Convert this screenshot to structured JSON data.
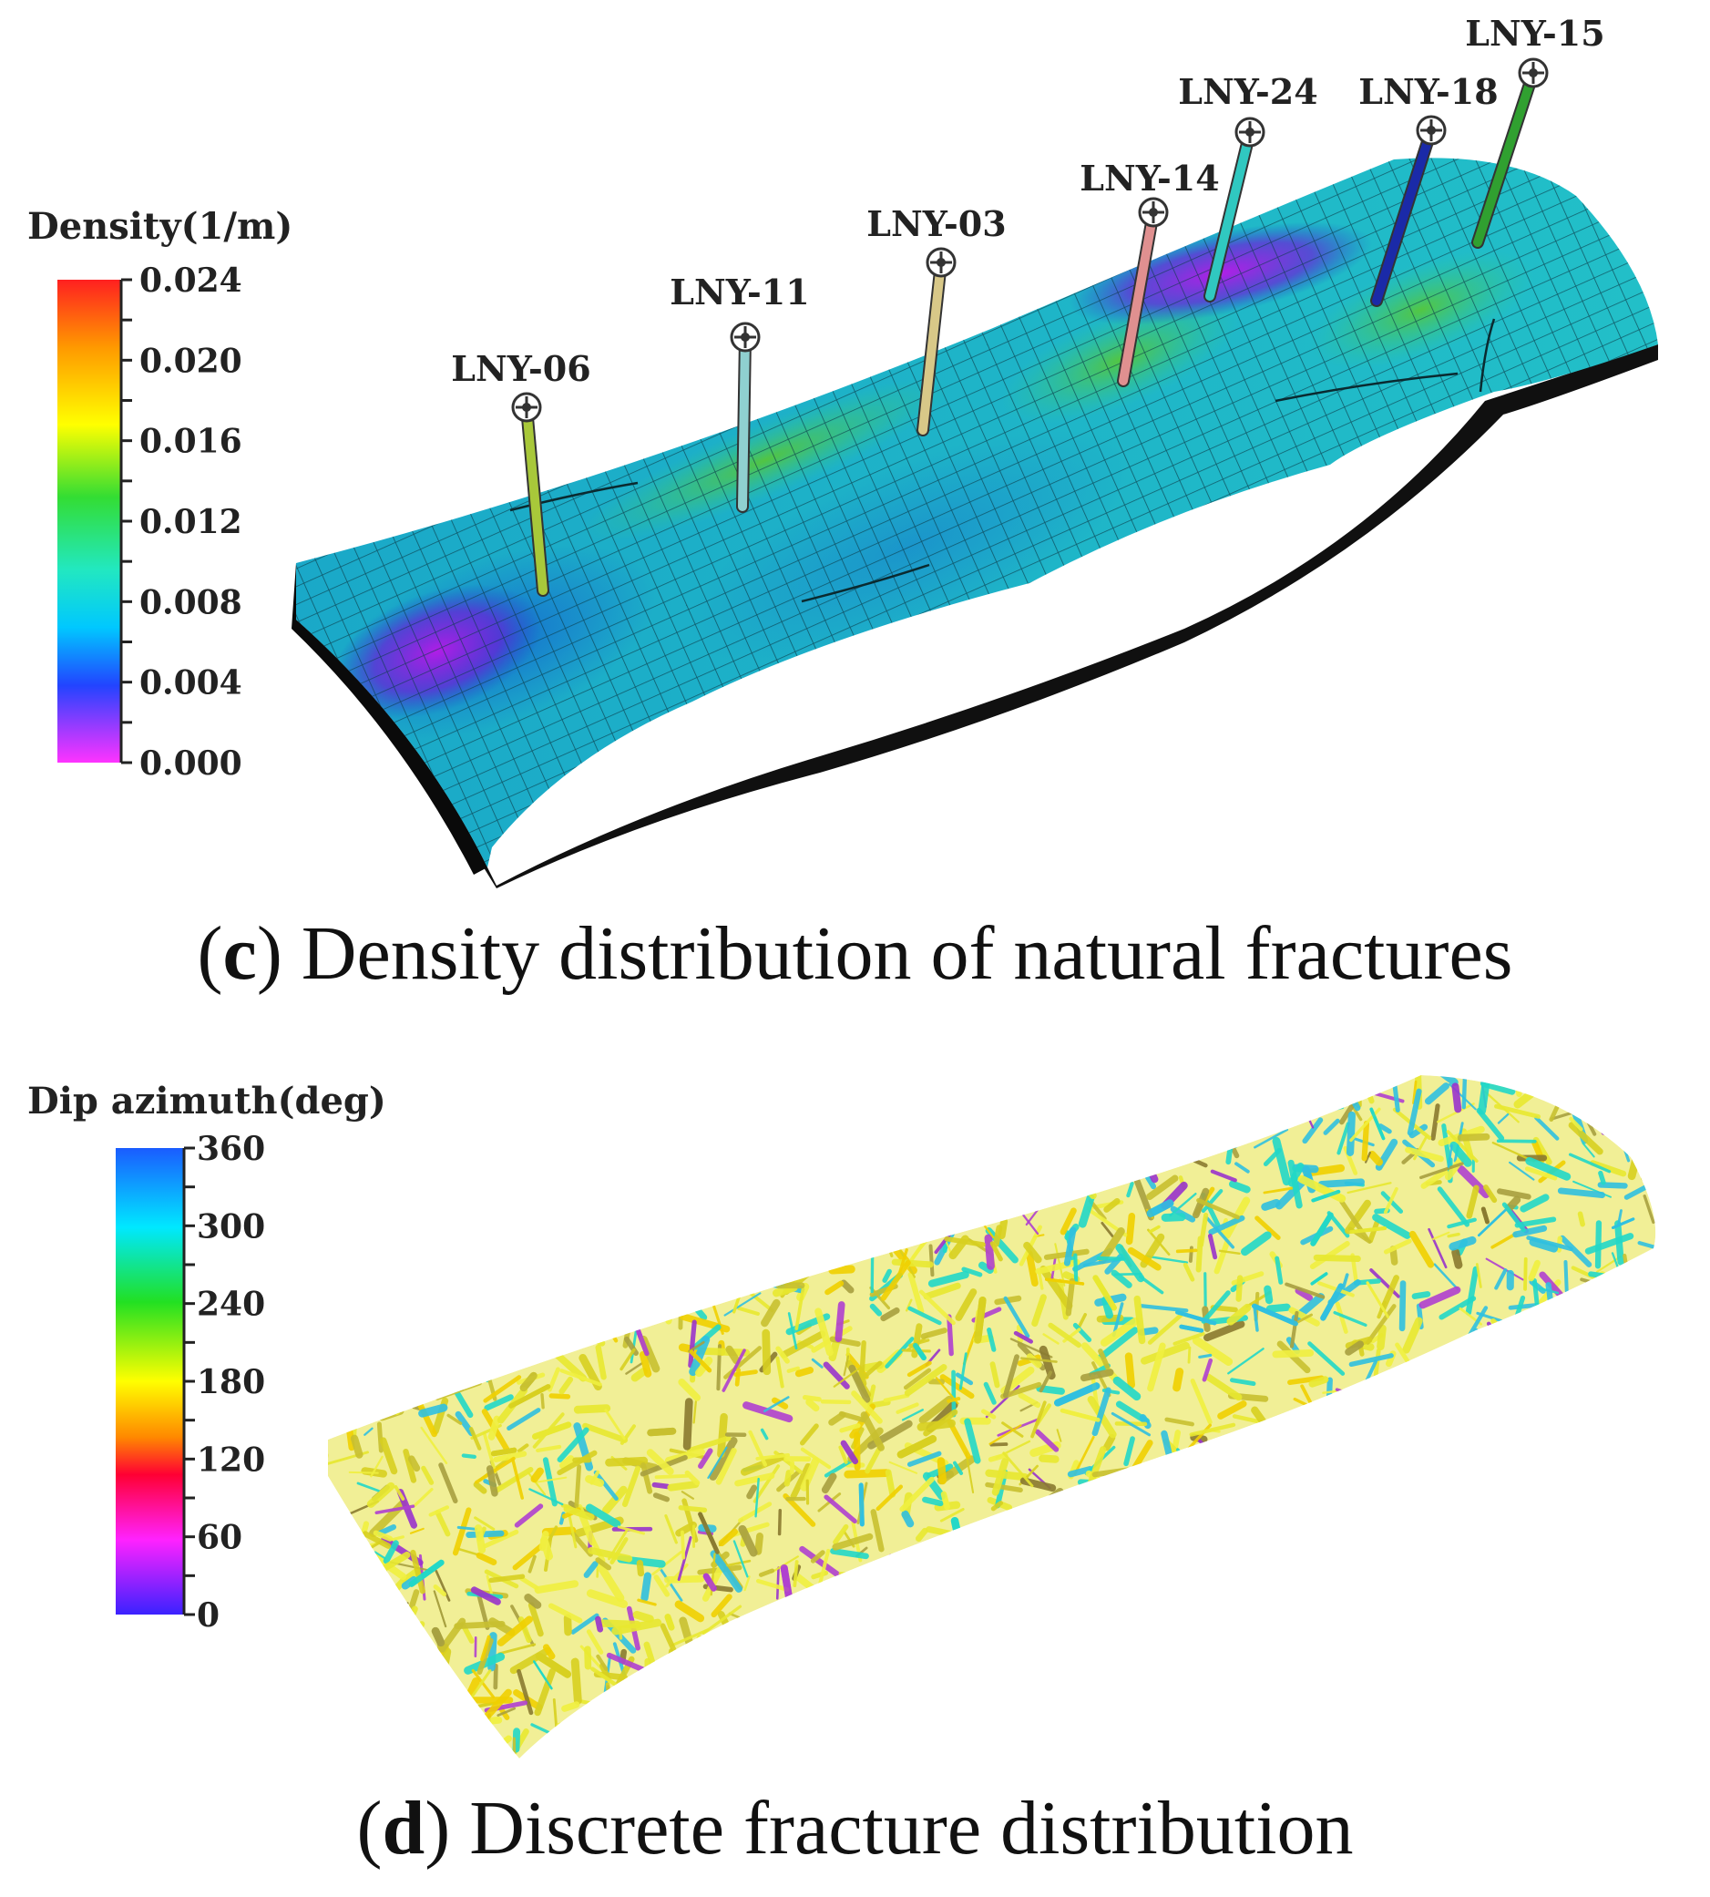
{
  "panel_c": {
    "caption_letter": "c",
    "caption_text": "Density distribution of natural fractures",
    "colorbar": {
      "title": "Density(1/m)",
      "ticks": [
        "0.024",
        "0.020",
        "0.016",
        "0.012",
        "0.008",
        "0.004",
        "0.000"
      ],
      "colors": [
        "#ff2020",
        "#ff9900",
        "#ffff00",
        "#33dd33",
        "#22e8c0",
        "#00c8ff",
        "#2244ff",
        "#ff33ff"
      ]
    },
    "wells": [
      {
        "name": "LNY-06",
        "color": "#a8c83a"
      },
      {
        "name": "LNY-11",
        "color": "#8fd0d0"
      },
      {
        "name": "LNY-03",
        "color": "#d8c888"
      },
      {
        "name": "LNY-14",
        "color": "#e09090"
      },
      {
        "name": "LNY-24",
        "color": "#30c8c0"
      },
      {
        "name": "LNY-18",
        "color": "#1a2aa8"
      },
      {
        "name": "LNY-15",
        "color": "#30a030"
      }
    ]
  },
  "panel_d": {
    "caption_letter": "d",
    "caption_text": "Discrete fracture distribution",
    "colorbar": {
      "title": "Dip azimuth(deg)",
      "ticks": [
        "360",
        "300",
        "240",
        "180",
        "120",
        "60",
        "0"
      ],
      "colors": [
        "#1a5cff",
        "#00e8ff",
        "#22e022",
        "#ffff00",
        "#ff8800",
        "#ff0033",
        "#ff22ff",
        "#3a22ff"
      ]
    },
    "fracture_colors": [
      "#e8e830",
      "#f0f040",
      "#d8d020",
      "#c8c030",
      "#a8a040",
      "#22d8c8",
      "#30c0e0",
      "#9933cc",
      "#b040d0",
      "#8a7a30",
      "#f0d000"
    ]
  }
}
